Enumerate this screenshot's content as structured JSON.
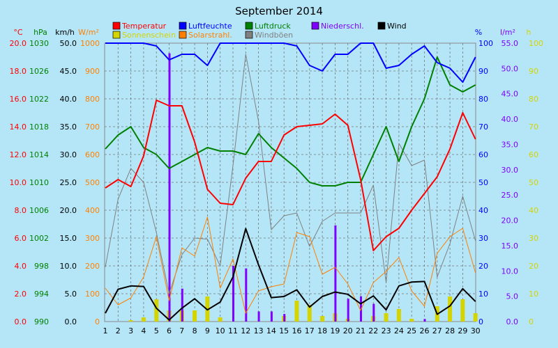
{
  "chart_data": {
    "type": "line",
    "title": "September 2014",
    "x": [
      1,
      2,
      3,
      4,
      5,
      6,
      7,
      8,
      9,
      10,
      11,
      12,
      13,
      14,
      15,
      16,
      17,
      18,
      19,
      20,
      21,
      22,
      23,
      24,
      25,
      26,
      27,
      28,
      29,
      30
    ],
    "legend": [
      {
        "key": "temp",
        "label": "Temperatur",
        "color": "#ff0000"
      },
      {
        "key": "humidity",
        "label": "Luftfeuchte",
        "color": "#0000ff"
      },
      {
        "key": "pressure",
        "label": "Luftdruck",
        "color": "#008000"
      },
      {
        "key": "rain",
        "label": "Niederschl.",
        "color": "#8000ff"
      },
      {
        "key": "wind",
        "label": "Wind",
        "color": "#000000"
      },
      {
        "key": "sun",
        "label": "Sonnenschein",
        "color": "#d4d400"
      },
      {
        "key": "solar",
        "label": "Solarstrahl.",
        "color": "#ff8000"
      },
      {
        "key": "gusts",
        "label": "Windböen",
        "color": "#808080"
      }
    ],
    "axes": {
      "temp": {
        "unit": "°C",
        "color": "#ff0000",
        "ylim": [
          0,
          20
        ],
        "ticks": [
          "0.0",
          "2.0",
          "4.0",
          "6.0",
          "8.0",
          "10.0",
          "12.0",
          "14.0",
          "16.0",
          "18.0",
          "20.0"
        ]
      },
      "pressure": {
        "unit": "hPa",
        "color": "#008000",
        "ylim": [
          990,
          1030
        ],
        "ticks": [
          "990",
          "994",
          "998",
          "1002",
          "1006",
          "1010",
          "1014",
          "1018",
          "1022",
          "1026",
          "1030"
        ]
      },
      "wind": {
        "unit": "km/h",
        "color": "#000000",
        "ylim": [
          0,
          50
        ],
        "ticks": [
          "0.0",
          "5.0",
          "10.0",
          "15.0",
          "20.0",
          "25.0",
          "30.0",
          "35.0",
          "40.0",
          "45.0",
          "50.0"
        ]
      },
      "solar": {
        "unit": "W/m²",
        "color": "#ff8000",
        "ylim": [
          0,
          1000
        ],
        "ticks": [
          "0",
          "100",
          "200",
          "300",
          "400",
          "500",
          "600",
          "700",
          "800",
          "900",
          "1000"
        ]
      },
      "humidity": {
        "unit": "%",
        "color": "#0000ff",
        "ylim": [
          0,
          100
        ],
        "ticks": [
          "0",
          "10",
          "20",
          "30",
          "40",
          "50",
          "60",
          "70",
          "80",
          "90",
          "100"
        ]
      },
      "rain": {
        "unit": "l/m²",
        "color": "#8000ff",
        "ylim": [
          0,
          55
        ],
        "ticks": [
          "0.0",
          "5.0",
          "10.0",
          "15.0",
          "20.0",
          "25.0",
          "30.0",
          "35.0",
          "40.0",
          "45.0",
          "50.0",
          "55.0"
        ]
      },
      "sun": {
        "unit": "h",
        "color": "#d4d400",
        "ylim": [
          0,
          100
        ],
        "ticks": [
          "0",
          "10",
          "20",
          "30",
          "40",
          "50",
          "60",
          "70",
          "80",
          "90",
          "100"
        ]
      }
    },
    "series": {
      "temp": [
        9.6,
        10.2,
        9.7,
        11.9,
        15.9,
        15.5,
        15.5,
        12.9,
        9.5,
        8.5,
        8.4,
        10.3,
        11.5,
        11.5,
        13.4,
        14.0,
        14.1,
        14.2,
        14.9,
        14.1,
        10.2,
        5.1,
        6.1,
        6.7,
        8.0,
        9.2,
        10.4,
        12.4,
        15.0,
        13.1
      ],
      "humidity": [
        100,
        100,
        100,
        100,
        99,
        94,
        96,
        96,
        92,
        100,
        100,
        100,
        100,
        100,
        100,
        99,
        92,
        90,
        96,
        96,
        100,
        100,
        91,
        92,
        96,
        99,
        93,
        91,
        86,
        95
      ],
      "pressure": [
        1014.8,
        1016.8,
        1018.0,
        1015.0,
        1014.0,
        1012.0,
        1013.0,
        1014.0,
        1015.0,
        1014.5,
        1014.5,
        1014.0,
        1017.0,
        1015.0,
        1013.5,
        1012.0,
        1010.0,
        1009.5,
        1009.5,
        1010.0,
        1010.0,
        1014.0,
        1018.0,
        1013.0,
        1018.0,
        1022.0,
        1028.0,
        1024.0,
        1023.0,
        1024.0
      ],
      "wind": [
        1.5,
        5.8,
        6.4,
        6.3,
        2.4,
        0.3,
        2.4,
        4.1,
        2.1,
        3.5,
        8.0,
        16.7,
        10.2,
        4.3,
        4.5,
        5.7,
        2.6,
        4.5,
        5.3,
        4.9,
        3.2,
        4.6,
        2.1,
        6.4,
        7.1,
        7.2,
        1.3,
        2.8,
        5.9,
        3.6
      ],
      "gusts": [
        9.8,
        22.0,
        27.5,
        25.0,
        16.0,
        5.0,
        12.0,
        15.0,
        14.8,
        10.0,
        28.0,
        48.0,
        36.0,
        16.5,
        19.0,
        19.5,
        13.5,
        18.0,
        19.5,
        19.5,
        19.5,
        24.5,
        7.0,
        32.0,
        28.0,
        29.0,
        8.0,
        14.0,
        22.5,
        14.5
      ],
      "solar": [
        120,
        60,
        85,
        160,
        305,
        75,
        265,
        235,
        375,
        120,
        225,
        30,
        110,
        125,
        135,
        320,
        305,
        170,
        195,
        135,
        40,
        140,
        180,
        230,
        110,
        55,
        245,
        305,
        335,
        175
      ],
      "sun": [
        0,
        0,
        0.5,
        1.5,
        8,
        4,
        4,
        4,
        9,
        1.5,
        0,
        0,
        0,
        0,
        2,
        7.5,
        6,
        2,
        3,
        1,
        0,
        2,
        3,
        4.5,
        1,
        0,
        5.5,
        9,
        8,
        3
      ],
      "rain": [
        0,
        0,
        0,
        0,
        0,
        53,
        6.5,
        0,
        0,
        0,
        11,
        10.5,
        2,
        2,
        1.5,
        0,
        0,
        0,
        19,
        4.5,
        5,
        3.5,
        0,
        0,
        0,
        0.5,
        0,
        0,
        0,
        0
      ]
    }
  }
}
